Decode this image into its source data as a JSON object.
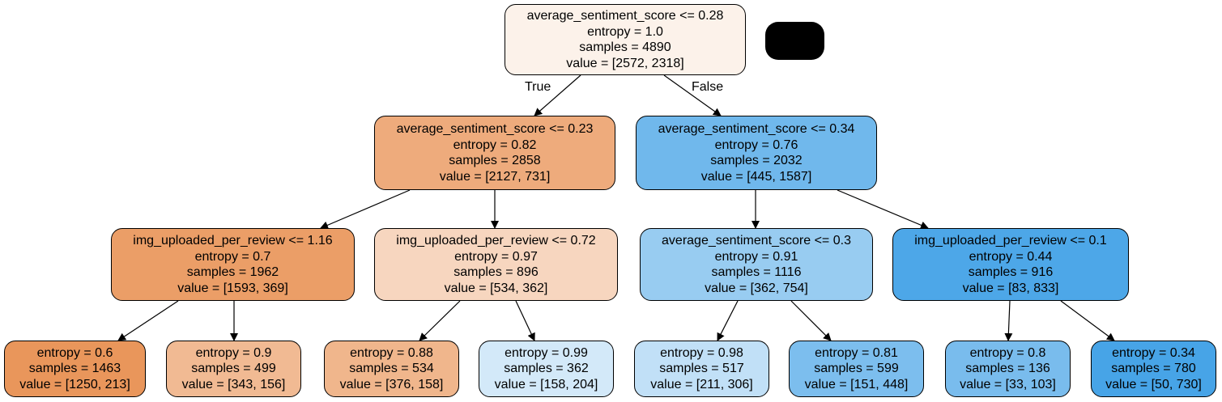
{
  "edge_labels": {
    "true_label": "True",
    "false_label": "False"
  },
  "nodes": [
    {
      "id": "n0",
      "split": "average_sentiment_score <= 0.28",
      "entropy": "entropy = 1.0",
      "samples": "samples = 4890",
      "value": "value = [2572, 2318]",
      "fill": "#fcf2ea"
    },
    {
      "id": "n1",
      "split": "average_sentiment_score <= 0.23",
      "entropy": "entropy = 0.82",
      "samples": "samples = 2858",
      "value": "value = [2127, 731]",
      "fill": "#eeab7c"
    },
    {
      "id": "n2",
      "split": "average_sentiment_score <= 0.34",
      "entropy": "entropy = 0.76",
      "samples": "samples = 2032",
      "value": "value = [445, 1587]",
      "fill": "#70b8ec"
    },
    {
      "id": "n3",
      "split": "img_uploaded_per_review <= 1.16",
      "entropy": "entropy = 0.7",
      "samples": "samples = 1962",
      "value": "value = [1593, 369]",
      "fill": "#eb9e67"
    },
    {
      "id": "n4",
      "split": "img_uploaded_per_review <= 0.72",
      "entropy": "entropy = 0.97",
      "samples": "samples = 896",
      "value": "value = [534, 362]",
      "fill": "#f7d6bf"
    },
    {
      "id": "n5",
      "split": "average_sentiment_score <= 0.3",
      "entropy": "entropy = 0.91",
      "samples": "samples = 1116",
      "value": "value = [362, 754]",
      "fill": "#98ccf1"
    },
    {
      "id": "n6",
      "split": "img_uploaded_per_review <= 0.1",
      "entropy": "entropy = 0.44",
      "samples": "samples = 916",
      "value": "value = [83, 833]",
      "fill": "#4da7e8"
    },
    {
      "id": "n7",
      "split": "",
      "entropy": "entropy = 0.6",
      "samples": "samples = 1463",
      "value": "value = [1250, 213]",
      "fill": "#e9965b"
    },
    {
      "id": "n8",
      "split": "",
      "entropy": "entropy = 0.9",
      "samples": "samples = 499",
      "value": "value = [343, 156]",
      "fill": "#f1ba93"
    },
    {
      "id": "n9",
      "split": "",
      "entropy": "entropy = 0.88",
      "samples": "samples = 534",
      "value": "value = [376, 158]",
      "fill": "#f0b68c"
    },
    {
      "id": "n10",
      "split": "",
      "entropy": "entropy = 0.99",
      "samples": "samples = 362",
      "value": "value = [158, 204]",
      "fill": "#d3e9f9"
    },
    {
      "id": "n11",
      "split": "",
      "entropy": "entropy = 0.98",
      "samples": "samples = 517",
      "value": "value = [211, 306]",
      "fill": "#c1e0f7"
    },
    {
      "id": "n12",
      "split": "",
      "entropy": "entropy = 0.81",
      "samples": "samples = 599",
      "value": "value = [151, 448]",
      "fill": "#7cbeee"
    },
    {
      "id": "n13",
      "split": "",
      "entropy": "entropy = 0.8",
      "samples": "samples = 136",
      "value": "value = [33, 103]",
      "fill": "#79bced"
    },
    {
      "id": "n14",
      "split": "",
      "entropy": "entropy = 0.34",
      "samples": "samples = 780",
      "value": "value = [50, 730]",
      "fill": "#47a4e7"
    }
  ]
}
